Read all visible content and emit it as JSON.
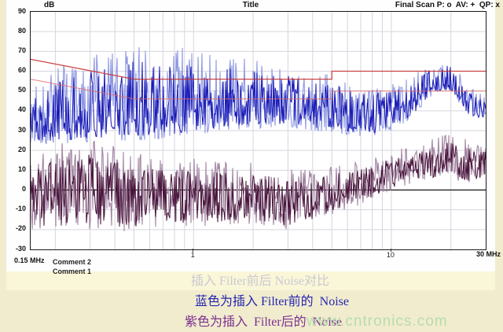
{
  "header": {
    "db_label": "dB",
    "title": "Title",
    "final_scan": "Final Scan P: o  AV: +  QP: x"
  },
  "comments": {
    "line_top": "Comment 2",
    "line_bottom": "Comment 1"
  },
  "captions": [
    {
      "text": "插入 Filter前后 Noise对比",
      "color": "#c9c9d1"
    },
    {
      "text": "蓝色为插入 Filter前的  Noise",
      "color": "#2424b2"
    },
    {
      "text": "紫色为插入  Filter后的  Noise",
      "color": "#7d2f91"
    }
  ],
  "watermark": "www.cntronics.com",
  "chart_data": {
    "type": "line",
    "title": "Title",
    "x_axis": {
      "scale": "log",
      "unit_label_left": "0.15 MHz",
      "unit_label_right": "30 MHz",
      "min_mhz": 0.15,
      "max_mhz": 30,
      "ticks": [
        {
          "f": 0.15,
          "label": "0.15 MHz",
          "bold": true
        },
        {
          "f": 1,
          "label": "1",
          "bold": false
        },
        {
          "f": 10,
          "label": "10",
          "bold": false
        },
        {
          "f": 30,
          "label": "30 MHz",
          "bold": true
        }
      ],
      "gridlines_mhz": [
        0.2,
        0.3,
        0.4,
        0.5,
        0.6,
        0.7,
        0.8,
        0.9,
        1,
        2,
        3,
        4,
        5,
        6,
        7,
        8,
        9,
        10,
        20
      ]
    },
    "y_axis": {
      "label": "dB",
      "min": -30,
      "max": 90,
      "step": 10,
      "tick_values": [
        90,
        80,
        70,
        60,
        50,
        40,
        30,
        20,
        10,
        0,
        -10,
        -20,
        -30
      ],
      "zero_line_color": "#111111",
      "grid_color": "#d5d5de"
    },
    "legend_markers": {
      "P": "o",
      "AV": "+",
      "QP": "x"
    },
    "limit_lines": [
      {
        "name": "limit-upper-QP",
        "color": "#c62828",
        "width": 1.3,
        "points_mhz_db": [
          [
            0.15,
            66
          ],
          [
            0.5,
            56
          ],
          [
            5,
            56
          ],
          [
            5,
            60
          ],
          [
            30,
            60
          ]
        ]
      },
      {
        "name": "limit-lower-AV",
        "color": "#e06a6a",
        "width": 1.0,
        "points_mhz_db": [
          [
            0.15,
            56
          ],
          [
            0.5,
            46
          ],
          [
            5,
            46
          ],
          [
            5,
            50
          ],
          [
            30,
            50
          ]
        ]
      }
    ],
    "series": [
      {
        "name": "noise-before-filter-blue",
        "caption": "蓝色为插入 Filter前的 Noise",
        "shape": "spiky",
        "colors": {
          "light": "#8f99e2",
          "dark": "#1717b5"
        },
        "envelope_mhz_min_max_db": [
          [
            0.15,
            23,
            50
          ],
          [
            0.2,
            23,
            62
          ],
          [
            0.3,
            24,
            68
          ],
          [
            0.5,
            25,
            73
          ],
          [
            0.8,
            26,
            73
          ],
          [
            1,
            28,
            70
          ],
          [
            1.5,
            30,
            68
          ],
          [
            2,
            31,
            66
          ],
          [
            3,
            32,
            63
          ],
          [
            4,
            30,
            60
          ],
          [
            5,
            29,
            58
          ],
          [
            7,
            27,
            55
          ],
          [
            9,
            28,
            54
          ],
          [
            11,
            32,
            56
          ],
          [
            13,
            37,
            58
          ],
          [
            15,
            45,
            63
          ],
          [
            18,
            50,
            66
          ],
          [
            20,
            49,
            65
          ],
          [
            23,
            40,
            57
          ],
          [
            26,
            36,
            51
          ],
          [
            30,
            36,
            49
          ]
        ]
      },
      {
        "name": "noise-after-filter-purple",
        "caption": "紫色为插入 Filter后的 Noise",
        "shape": "band",
        "colors": {
          "light": "#a184a1",
          "dark": "#451037"
        },
        "envelope_mhz_min_max_db": [
          [
            0.15,
            -20,
            14
          ],
          [
            0.2,
            -21,
            24
          ],
          [
            0.3,
            -20,
            26
          ],
          [
            0.4,
            -22,
            22
          ],
          [
            0.6,
            -20,
            18
          ],
          [
            1,
            -18,
            16
          ],
          [
            1.5,
            -19,
            15
          ],
          [
            2,
            -18,
            14
          ],
          [
            3,
            -20,
            11
          ],
          [
            4,
            -16,
            10
          ],
          [
            5,
            -13,
            12
          ],
          [
            6,
            -10,
            14
          ],
          [
            8,
            -5,
            16
          ],
          [
            10,
            0,
            20
          ],
          [
            13,
            3,
            24
          ],
          [
            16,
            5,
            27
          ],
          [
            20,
            6,
            28
          ],
          [
            24,
            3,
            26
          ],
          [
            27,
            4,
            24
          ],
          [
            30,
            6,
            22
          ]
        ]
      }
    ]
  }
}
